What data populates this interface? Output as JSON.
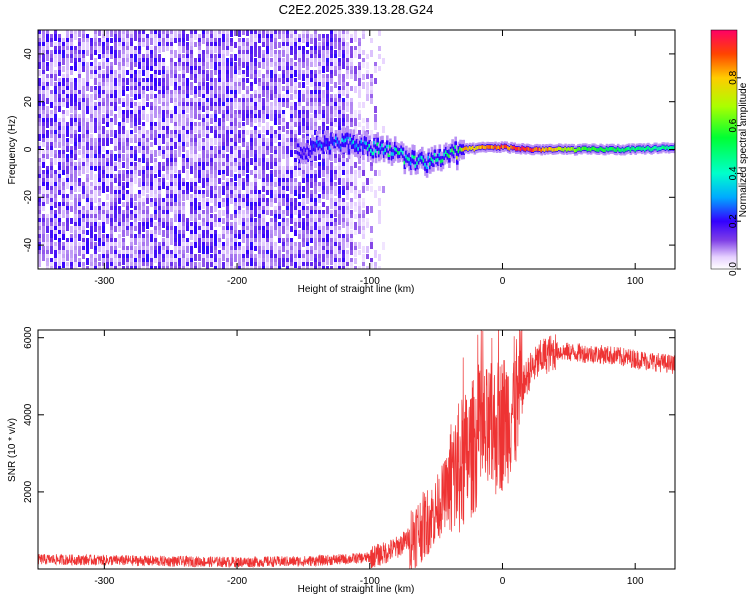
{
  "title": "C2E2.2025.339.13.28.G24",
  "chart_data": [
    {
      "type": "heatmap",
      "name": "spectrogram",
      "xlabel": "Height of straight line (km)",
      "ylabel": "Frequency (Hz)",
      "xlim": [
        -350,
        130
      ],
      "ylim": [
        -50,
        50
      ],
      "xticks": [
        -300,
        -200,
        -100,
        0,
        100
      ],
      "yticks": [
        -40,
        -20,
        0,
        20,
        40
      ],
      "colorbar": {
        "label": "Normalized spectral amplitude",
        "range": [
          0,
          1
        ],
        "ticks": [
          "0.0",
          "0.2",
          "0.4",
          "0.6",
          "0.8"
        ]
      },
      "noise_region_x": [
        -350,
        -120
      ],
      "signal_track": {
        "x": [
          -155,
          -140,
          -120,
          -100,
          -80,
          -60,
          -45,
          -30,
          -10,
          0,
          20,
          60,
          100,
          130
        ],
        "freq_hz": [
          -2,
          2,
          3,
          1,
          -2,
          -6,
          -3,
          0,
          1,
          1,
          0,
          0,
          0,
          1
        ],
        "peak_amplitude": [
          0.1,
          0.25,
          0.35,
          0.4,
          0.5,
          0.45,
          0.5,
          0.8,
          0.85,
          0.9,
          0.95,
          0.6,
          0.5,
          0.45
        ]
      }
    },
    {
      "type": "line",
      "name": "snr",
      "xlabel": "Height of straight line (km)",
      "ylabel": "SNR (10 * v/v)",
      "xlim": [
        -350,
        130
      ],
      "ylim": [
        0,
        6200
      ],
      "xticks": [
        -300,
        -200,
        -100,
        0,
        100
      ],
      "yticks": [
        2000,
        4000,
        6000
      ],
      "color": "#ee3333",
      "series": [
        {
          "name": "SNR",
          "x": [
            -350,
            -300,
            -250,
            -200,
            -150,
            -120,
            -100,
            -90,
            -80,
            -70,
            -60,
            -50,
            -40,
            -30,
            -20,
            -10,
            0,
            10,
            20,
            30,
            40,
            60,
            80,
            100,
            120,
            130
          ],
          "y": [
            250,
            230,
            200,
            180,
            200,
            250,
            300,
            400,
            550,
            800,
            1100,
            1500,
            2200,
            2700,
            3300,
            3500,
            3800,
            4300,
            5100,
            5500,
            5650,
            5600,
            5550,
            5450,
            5350,
            5300
          ]
        }
      ]
    }
  ]
}
